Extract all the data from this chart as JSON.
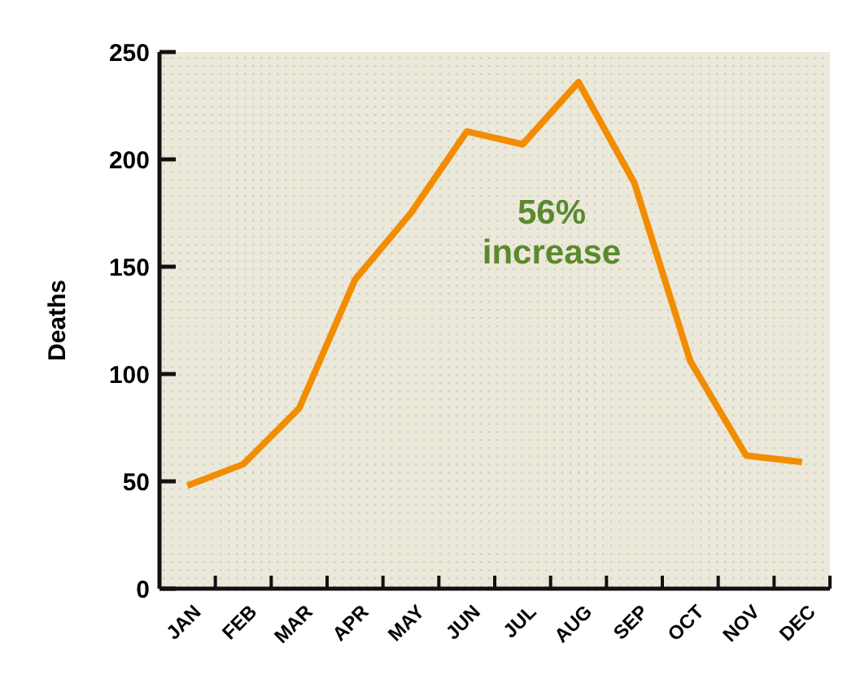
{
  "chart_data": {
    "type": "line",
    "ylabel": "Deaths",
    "categories": [
      "JAN",
      "FEB",
      "MAR",
      "APR",
      "MAY",
      "JUN",
      "JUL",
      "AUG",
      "SEP",
      "OCT",
      "NOV",
      "DEC"
    ],
    "series": [
      {
        "color": "#f28c00",
        "values": [
          48,
          58,
          84,
          144,
          175,
          213,
          207,
          236,
          189,
          106,
          62,
          59
        ]
      }
    ],
    "ylim": [
      0,
      250
    ],
    "yticks": [
      0,
      50,
      100,
      150,
      200,
      250
    ],
    "grid": false,
    "marker": "none",
    "line_style": "solid",
    "annotations": [
      "56%\nincrease"
    ]
  }
}
